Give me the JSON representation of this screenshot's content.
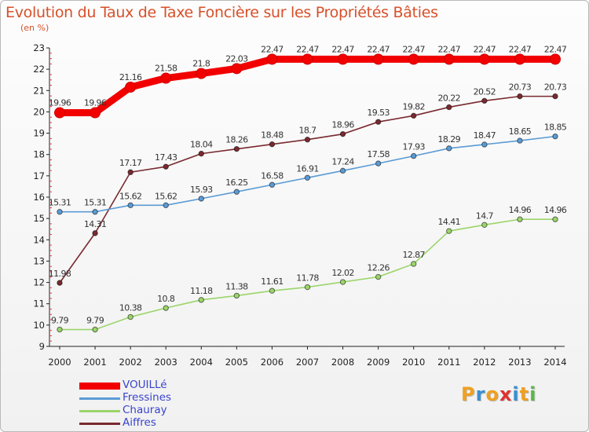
{
  "chart_data": {
    "type": "line",
    "title": "Evolution du Taux de Taxe Foncière sur les Propriétés Bâties",
    "subtitle": "(en %)",
    "xlabel": "",
    "ylabel": "",
    "ylim": [
      9,
      23
    ],
    "yticks": [
      9,
      10,
      11,
      12,
      13,
      14,
      15,
      16,
      17,
      18,
      19,
      20,
      21,
      22,
      23
    ],
    "x": [
      "2000",
      "2001",
      "2002",
      "2003",
      "2004",
      "2005",
      "2006",
      "2007",
      "2008",
      "2009",
      "2010",
      "2011",
      "2012",
      "2013",
      "2014"
    ],
    "series": [
      {
        "name": "VOUILLé",
        "color": "#f20000",
        "values": [
          19.96,
          19.96,
          21.16,
          21.58,
          21.8,
          22.03,
          22.47,
          22.47,
          22.47,
          22.47,
          22.47,
          22.47,
          22.47,
          22.47,
          22.47
        ],
        "labels": [
          "19.96",
          "19.96",
          "21.16",
          "21.58",
          "21.8",
          "22.03",
          "22.47",
          "22.47",
          "22.47",
          "22.47",
          "22.47",
          "22.47",
          "22.47",
          "22.47",
          "22.47"
        ]
      },
      {
        "name": "Fressines",
        "color": "#5b9bd5",
        "values": [
          15.31,
          15.31,
          15.62,
          15.62,
          15.93,
          16.25,
          16.58,
          16.91,
          17.24,
          17.58,
          17.93,
          18.29,
          18.47,
          18.65,
          18.85
        ],
        "labels": [
          "15.31",
          "15.31",
          "15.62",
          "15.62",
          "15.93",
          "16.25",
          "16.58",
          "16.91",
          "17.24",
          "17.58",
          "17.93",
          "18.29",
          "18.47",
          "18.65",
          "18.85"
        ]
      },
      {
        "name": "Chauray",
        "color": "#9bd56a",
        "values": [
          9.79,
          9.79,
          10.38,
          10.8,
          11.18,
          11.38,
          11.61,
          11.78,
          12.02,
          12.26,
          12.87,
          14.41,
          14.7,
          14.96,
          14.96
        ],
        "labels": [
          "9.79",
          "9.79",
          "10.38",
          "10.8",
          "11.18",
          "11.38",
          "11.61",
          "11.78",
          "12.02",
          "12.26",
          "12.87",
          "14.41",
          "14.7",
          "14.96",
          "14.96"
        ]
      },
      {
        "name": "Aiffres",
        "color": "#7a2a30",
        "values": [
          11.98,
          14.31,
          17.17,
          17.43,
          18.04,
          18.26,
          18.48,
          18.7,
          18.96,
          19.53,
          19.82,
          20.22,
          20.52,
          20.73,
          20.73
        ],
        "labels": [
          "11.98",
          "14.31",
          "17.17",
          "17.43",
          "18.04",
          "18.26",
          "18.48",
          "18.7",
          "18.96",
          "19.53",
          "19.82",
          "20.22",
          "20.52",
          "20.73",
          "20.73"
        ]
      }
    ],
    "grid": false,
    "legend": "bottom-left"
  },
  "brand": {
    "logo_letters": [
      "P",
      "r",
      "o",
      "x",
      "i",
      "t",
      "i"
    ],
    "logo_colors": [
      "#f0a020",
      "#3a8fd0",
      "#f0a020",
      "#e03030",
      "#3a8fd0",
      "#f0a020",
      "#58b848"
    ]
  }
}
